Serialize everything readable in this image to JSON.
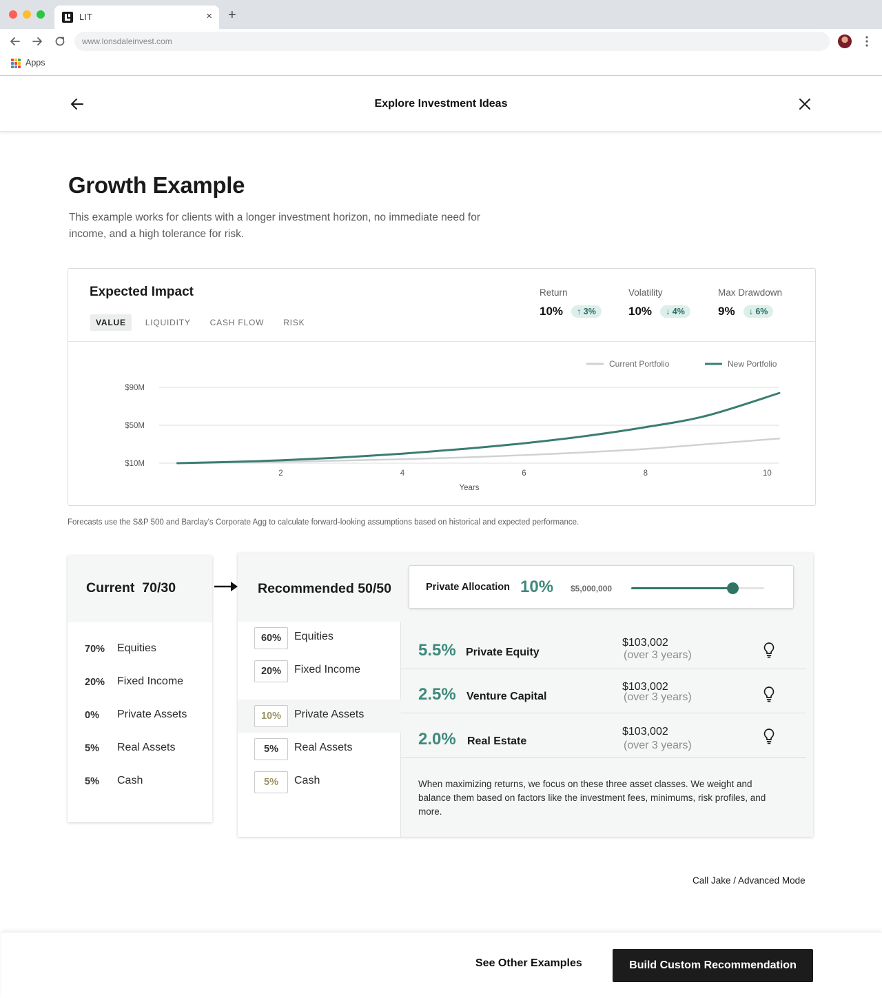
{
  "browser": {
    "tab_title": "LIT",
    "url": "www.lonsdaleinvest.com",
    "bookmarks_label": "Apps",
    "new_tab_symbol": "+",
    "close_tab_symbol": "×"
  },
  "header": {
    "title": "Explore Investment Ideas"
  },
  "intro": {
    "title": "Growth Example",
    "description": "This example works for clients with a longer investment horizon, no immediate need for income, and a high tolerance for risk."
  },
  "impact": {
    "title": "Expected Impact",
    "tabs": [
      {
        "label": "VALUE",
        "active": true
      },
      {
        "label": "LIQUIDITY",
        "active": false
      },
      {
        "label": "CASH FLOW",
        "active": false
      },
      {
        "label": "RISK",
        "active": false
      }
    ],
    "metrics": [
      {
        "label": "Return",
        "value": "10%",
        "change": "3%",
        "direction": "up"
      },
      {
        "label": "Volatility",
        "value": "10%",
        "change": "4%",
        "direction": "down"
      },
      {
        "label": "Max Drawdown",
        "value": "9%",
        "change": "6%",
        "direction": "down"
      }
    ]
  },
  "chart_data": {
    "type": "line",
    "xlabel": "Years",
    "ylabel": "",
    "x_ticks": [
      2,
      4,
      6,
      8,
      10
    ],
    "y_ticks": [
      "$10M",
      "$50M",
      "$90M"
    ],
    "y_tick_values": [
      10,
      50,
      90
    ],
    "xlim": [
      0,
      10.2
    ],
    "ylim": [
      10,
      90
    ],
    "grid": true,
    "legend_position": "top-right",
    "series": [
      {
        "name": "Current Portfolio",
        "color": "#cfd2d4",
        "x": [
          0.3,
          1,
          2,
          3,
          4,
          5,
          6,
          7,
          8,
          9,
          10.2
        ],
        "values": [
          10,
          10.5,
          11.4,
          12.7,
          14.2,
          16.0,
          18.5,
          21.4,
          25.0,
          30.0,
          36.0
        ]
      },
      {
        "name": "New Portfolio",
        "color": "#3a7d71",
        "x": [
          0.3,
          1,
          2,
          3,
          4,
          5,
          6,
          7,
          8,
          9,
          10.2
        ],
        "values": [
          10,
          11,
          13,
          16,
          20,
          25,
          31,
          38.5,
          48,
          60,
          84
        ]
      }
    ]
  },
  "footnote": "Forecasts use the S&P 500 and Barclay's Corporate Agg to calculate forward-looking assumptions based on historical and expected performance.",
  "current": {
    "title": "Current  70/30",
    "rows": [
      {
        "pct": "70%",
        "name": "Equities"
      },
      {
        "pct": "20%",
        "name": "Fixed Income"
      },
      {
        "pct": "0%",
        "name": "Private Assets"
      },
      {
        "pct": "5%",
        "name": "Real Assets"
      },
      {
        "pct": "5%",
        "name": "Cash"
      }
    ]
  },
  "recommended": {
    "title": "Recommended 50/50",
    "private_allocation": {
      "label": "Private Allocation",
      "pct": "10%",
      "amount": "$5,000,000",
      "slider_fraction": 0.76
    },
    "rows": [
      {
        "pct": "60%",
        "name": "Equities"
      },
      {
        "pct": "20%",
        "name": "Fixed Income"
      },
      {
        "pct": "10%",
        "name": "Private Assets"
      },
      {
        "pct": "5%",
        "name": "Real Assets"
      },
      {
        "pct": "5%",
        "name": "Cash"
      }
    ],
    "details": [
      {
        "pct": "5.5%",
        "name": "Private Equity",
        "amount": "$103,002",
        "period": "(over 3 years)"
      },
      {
        "pct": "2.5%",
        "name": "Venture Capital",
        "amount": "$103,002",
        "period": "(over 3 years)"
      },
      {
        "pct": "2.0%",
        "name": "Real Estate",
        "amount": "$103,002",
        "period": "(over 3 years)"
      }
    ],
    "note": "When maximizing returns, we focus on these three asset classes. We weight and balance them based on factors like the investment fees, minimums, risk profiles, and more."
  },
  "advanced_link": "Call Jake / Advanced Mode",
  "footer": {
    "secondary_label": "See Other Examples",
    "primary_label": "Build Custom Recommendation"
  },
  "colors": {
    "accent": "#3e8a7c",
    "accent_dark": "#2f7566",
    "pill_bg": "#dcefea",
    "olive": "#9a9467"
  }
}
